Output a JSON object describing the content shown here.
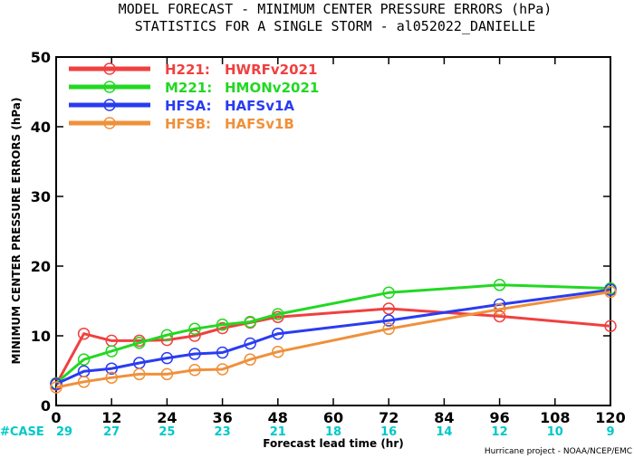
{
  "title_line1": "MODEL FORECAST - MINIMUM CENTER PRESSURE ERRORS (hPa)",
  "title_line2": "STATISTICS FOR A SINGLE STORM - al052022_DANIELLE",
  "credit": "Hurricane project - NOAA/NCEP/EMC",
  "case_label": "#CASE",
  "case_color": "#00c8c8",
  "chart_data": {
    "type": "line",
    "xlabel": "Forecast lead time (hr)",
    "ylabel": "MINIMUM CENTER PRESSURE ERRORS (hPa)",
    "xlim": [
      0,
      120
    ],
    "ylim": [
      0,
      50
    ],
    "x_ticks": [
      0,
      12,
      24,
      36,
      48,
      60,
      72,
      84,
      96,
      108,
      120
    ],
    "y_ticks": [
      0,
      10,
      20,
      30,
      40,
      50
    ],
    "grid": false,
    "legend_position": "top-left",
    "cases": [
      {
        "x": 0,
        "n": "29"
      },
      {
        "x": 12,
        "n": "27"
      },
      {
        "x": 24,
        "n": "25"
      },
      {
        "x": 36,
        "n": "23"
      },
      {
        "x": 48,
        "n": "21"
      },
      {
        "x": 60,
        "n": "18"
      },
      {
        "x": 72,
        "n": "16"
      },
      {
        "x": 84,
        "n": "14"
      },
      {
        "x": 96,
        "n": "12"
      },
      {
        "x": 108,
        "n": "10"
      },
      {
        "x": 120,
        "n": "9"
      }
    ],
    "series": [
      {
        "code": "H221",
        "name": "HWRFv2021",
        "color": "#f04040",
        "x": [
          0,
          6,
          12,
          18,
          24,
          30,
          36,
          42,
          48,
          72,
          96,
          120
        ],
        "y": [
          3.0,
          10.3,
          9.3,
          9.3,
          9.4,
          10.0,
          11.1,
          11.9,
          12.7,
          13.9,
          12.8,
          11.4
        ]
      },
      {
        "code": "M221",
        "name": "HMONv2021",
        "color": "#22d822",
        "x": [
          0,
          6,
          12,
          18,
          24,
          30,
          36,
          42,
          48,
          72,
          96,
          120
        ],
        "y": [
          3.2,
          6.6,
          7.8,
          9.0,
          10.1,
          11.0,
          11.6,
          12.0,
          13.1,
          16.2,
          17.3,
          16.8
        ]
      },
      {
        "code": "HFSA",
        "name": "HAFSv1A",
        "color": "#2a3cf0",
        "x": [
          0,
          6,
          12,
          18,
          24,
          30,
          36,
          42,
          48,
          72,
          96,
          120
        ],
        "y": [
          3.1,
          4.9,
          5.3,
          6.1,
          6.8,
          7.4,
          7.6,
          8.9,
          10.3,
          12.2,
          14.5,
          16.6
        ]
      },
      {
        "code": "HFSB",
        "name": "HAFSv1B",
        "color": "#f0903a",
        "x": [
          0,
          6,
          12,
          18,
          24,
          30,
          36,
          42,
          48,
          72,
          96,
          120
        ],
        "y": [
          2.6,
          3.4,
          4.0,
          4.5,
          4.5,
          5.1,
          5.2,
          6.6,
          7.7,
          11.0,
          13.8,
          16.3
        ]
      }
    ]
  }
}
